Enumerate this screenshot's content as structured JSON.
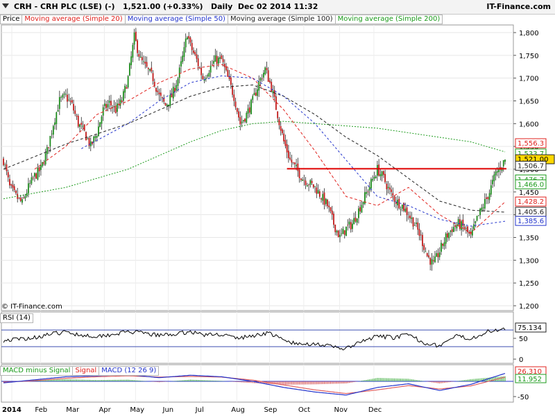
{
  "header": {
    "title": "CRH - CRH PLC (LSE) (-)   1,521.00 (+0.33%)   Daily  Dec 02 2014 11:32",
    "brand": "IT-Finance.com"
  },
  "legend": {
    "price": "Price",
    "ma20": "Moving average (Simple 20)",
    "ma50": "Moving average (Simple 50)",
    "ma100": "Moving average (Simple 100)",
    "ma200": "Moving average (Simple 200)"
  },
  "copyright": "© IT-Finance.com",
  "rsi_label": "RSI (14)",
  "macd_labels": {
    "hist": "MACD minus Signal",
    "signal": "Signal",
    "macd": "MACD (12 26 9)"
  },
  "colors": {
    "up": "#1a8a1a",
    "down": "#c01818",
    "ma20": "#e0201c",
    "ma50": "#2233cc",
    "ma100": "#222222",
    "ma200": "#1a9a1a",
    "resistance": "#e00000"
  },
  "chart_data": [
    {
      "type": "candlestick",
      "title": "CRH - CRH PLC (LSE)",
      "interval": "Daily",
      "x_ticks": [
        "2014",
        "Feb",
        "Mar",
        "Apr",
        "May",
        "Jun",
        "Jul",
        "Aug",
        "Sep",
        "Oct",
        "Nov",
        "Dec"
      ],
      "y_ticks": [
        1200,
        1250,
        1300,
        1350,
        1400,
        1450,
        1500,
        1550,
        1600,
        1650,
        1700,
        1750,
        1800
      ],
      "y_tick_labels": [
        "1,200",
        "1,250",
        "1,300",
        "1,350",
        "1,400",
        "1,450",
        "1,500",
        "1,550",
        "1,600",
        "1,650",
        "1,700",
        "1,750",
        "1,800"
      ],
      "ylim": [
        1180,
        1825
      ],
      "last_price": 1521.0,
      "last_price_label": "1,521.00",
      "resistance_level": 1501,
      "price_path": [
        [
          0,
          1520
        ],
        [
          4,
          1460
        ],
        [
          8,
          1440
        ],
        [
          12,
          1425
        ],
        [
          16,
          1460
        ],
        [
          20,
          1485
        ],
        [
          24,
          1500
        ],
        [
          28,
          1540
        ],
        [
          32,
          1600
        ],
        [
          36,
          1650
        ],
        [
          40,
          1660
        ],
        [
          44,
          1640
        ],
        [
          48,
          1600
        ],
        [
          52,
          1580
        ],
        [
          56,
          1550
        ],
        [
          60,
          1580
        ],
        [
          64,
          1630
        ],
        [
          68,
          1645
        ],
        [
          72,
          1630
        ],
        [
          76,
          1650
        ],
        [
          80,
          1700
        ],
        [
          84,
          1790
        ],
        [
          88,
          1740
        ],
        [
          92,
          1720
        ],
        [
          96,
          1700
        ],
        [
          100,
          1660
        ],
        [
          104,
          1640
        ],
        [
          108,
          1660
        ],
        [
          112,
          1700
        ],
        [
          116,
          1760
        ],
        [
          118,
          1800
        ],
        [
          120,
          1770
        ],
        [
          124,
          1740
        ],
        [
          128,
          1700
        ],
        [
          132,
          1720
        ],
        [
          136,
          1740
        ],
        [
          140,
          1740
        ],
        [
          144,
          1700
        ],
        [
          148,
          1660
        ],
        [
          152,
          1600
        ],
        [
          156,
          1620
        ],
        [
          160,
          1650
        ],
        [
          164,
          1690
        ],
        [
          168,
          1720
        ],
        [
          172,
          1680
        ],
        [
          176,
          1620
        ],
        [
          180,
          1560
        ],
        [
          184,
          1520
        ],
        [
          188,
          1500
        ],
        [
          192,
          1480
        ],
        [
          196,
          1470
        ],
        [
          200,
          1460
        ],
        [
          204,
          1440
        ],
        [
          208,
          1420
        ],
        [
          212,
          1380
        ],
        [
          216,
          1350
        ],
        [
          220,
          1370
        ],
        [
          224,
          1380
        ],
        [
          228,
          1410
        ],
        [
          232,
          1440
        ],
        [
          236,
          1470
        ],
        [
          240,
          1500
        ],
        [
          244,
          1480
        ],
        [
          248,
          1450
        ],
        [
          252,
          1430
        ],
        [
          256,
          1420
        ],
        [
          260,
          1400
        ],
        [
          264,
          1380
        ],
        [
          268,
          1350
        ],
        [
          272,
          1310
        ],
        [
          276,
          1290
        ],
        [
          280,
          1320
        ],
        [
          284,
          1350
        ],
        [
          288,
          1370
        ],
        [
          292,
          1380
        ],
        [
          296,
          1370
        ],
        [
          300,
          1350
        ],
        [
          304,
          1390
        ],
        [
          308,
          1420
        ],
        [
          312,
          1450
        ],
        [
          316,
          1490
        ],
        [
          320,
          1510
        ],
        [
          322,
          1521
        ]
      ],
      "series": [
        {
          "name": "Moving average (Simple 20)",
          "values": [
            [
              20,
              1500
            ],
            [
              40,
              1550
            ],
            [
              60,
              1620
            ],
            [
              80,
              1650
            ],
            [
              100,
              1690
            ],
            [
              120,
              1720
            ],
            [
              140,
              1730
            ],
            [
              160,
              1700
            ],
            [
              180,
              1630
            ],
            [
              200,
              1540
            ],
            [
              220,
              1440
            ],
            [
              240,
              1420
            ],
            [
              260,
              1460
            ],
            [
              280,
              1400
            ],
            [
              300,
              1360
            ],
            [
              322,
              1428.2
            ]
          ]
        },
        {
          "name": "Moving average (Simple 50)",
          "values": [
            [
              50,
              1545
            ],
            [
              80,
              1600
            ],
            [
              100,
              1650
            ],
            [
              120,
              1690
            ],
            [
              140,
              1705
            ],
            [
              160,
              1700
            ],
            [
              180,
              1660
            ],
            [
              200,
              1600
            ],
            [
              220,
              1520
            ],
            [
              240,
              1440
            ],
            [
              260,
              1420
            ],
            [
              280,
              1390
            ],
            [
              300,
              1375
            ],
            [
              322,
              1385.6
            ]
          ]
        },
        {
          "name": "Moving average (Simple 100)",
          "values": [
            [
              0,
              1500
            ],
            [
              40,
              1555
            ],
            [
              80,
              1600
            ],
            [
              100,
              1630
            ],
            [
              120,
              1660
            ],
            [
              140,
              1680
            ],
            [
              160,
              1685
            ],
            [
              180,
              1660
            ],
            [
              200,
              1620
            ],
            [
              220,
              1570
            ],
            [
              240,
              1530
            ],
            [
              260,
              1480
            ],
            [
              280,
              1430
            ],
            [
              300,
              1410
            ],
            [
              322,
              1405.6
            ]
          ]
        },
        {
          "name": "Moving average (Simple 200)",
          "values": [
            [
              0,
              1435
            ],
            [
              40,
              1460
            ],
            [
              80,
              1500
            ],
            [
              100,
              1530
            ],
            [
              120,
              1560
            ],
            [
              140,
              1585
            ],
            [
              160,
              1600
            ],
            [
              180,
              1605
            ],
            [
              200,
              1600
            ],
            [
              220,
              1595
            ],
            [
              240,
              1590
            ],
            [
              260,
              1580
            ],
            [
              280,
              1570
            ],
            [
              300,
              1560
            ],
            [
              322,
              1538
            ]
          ]
        }
      ],
      "right_badges": [
        {
          "value": 1556.3,
          "label": "1,556.3",
          "color": "#e0201c"
        },
        {
          "value": 1533.7,
          "label": "1,533.7",
          "color": "#1a9a1a"
        },
        {
          "value": 1521.0,
          "label": "1,521.00",
          "color": "#222222",
          "highlight": true
        },
        {
          "value": 1506.7,
          "label": "1,506.7",
          "color": "#222222"
        },
        {
          "value": 1476.7,
          "label": "1,476.7",
          "color": "#1a9a1a"
        },
        {
          "value": 1466.0,
          "label": "1,466.0",
          "color": "#1a9a1a"
        },
        {
          "value": 1428.2,
          "label": "1,428.2",
          "color": "#e0201c"
        },
        {
          "value": 1405.6,
          "label": "1,405.6",
          "color": "#222222"
        },
        {
          "value": 1385.6,
          "label": "1,385.6",
          "color": "#2233cc"
        }
      ]
    },
    {
      "type": "line",
      "title": "RSI (14)",
      "y_ticks": [
        0,
        50
      ],
      "ylim": [
        0,
        100
      ],
      "levels": [
        30,
        70
      ],
      "last_value": 75.134,
      "last_value_label": "75.134",
      "values": [
        [
          0,
          45
        ],
        [
          10,
          48
        ],
        [
          20,
          52
        ],
        [
          30,
          60
        ],
        [
          40,
          65
        ],
        [
          50,
          58
        ],
        [
          60,
          55
        ],
        [
          70,
          60
        ],
        [
          80,
          66
        ],
        [
          90,
          62
        ],
        [
          100,
          57
        ],
        [
          110,
          60
        ],
        [
          120,
          66
        ],
        [
          130,
          58
        ],
        [
          140,
          60
        ],
        [
          150,
          50
        ],
        [
          160,
          56
        ],
        [
          170,
          64
        ],
        [
          180,
          45
        ],
        [
          190,
          35
        ],
        [
          200,
          38
        ],
        [
          210,
          30
        ],
        [
          220,
          25
        ],
        [
          230,
          42
        ],
        [
          240,
          55
        ],
        [
          250,
          52
        ],
        [
          260,
          58
        ],
        [
          270,
          40
        ],
        [
          280,
          32
        ],
        [
          290,
          55
        ],
        [
          300,
          50
        ],
        [
          310,
          65
        ],
        [
          322,
          75
        ]
      ]
    },
    {
      "type": "bar+line",
      "title": "MACD (12 26 9)",
      "y_ticks": [
        -50
      ],
      "ylim": [
        -60,
        45
      ],
      "last_values": [
        {
          "label": "26.310",
          "color": "#e0201c"
        },
        {
          "label": "11.952",
          "color": "#1a9a1a"
        }
      ],
      "macd": [
        [
          0,
          -5
        ],
        [
          20,
          5
        ],
        [
          40,
          15
        ],
        [
          60,
          18
        ],
        [
          80,
          22
        ],
        [
          100,
          12
        ],
        [
          120,
          20
        ],
        [
          140,
          15
        ],
        [
          160,
          0
        ],
        [
          180,
          -20
        ],
        [
          200,
          -35
        ],
        [
          220,
          -45
        ],
        [
          240,
          -20
        ],
        [
          260,
          -8
        ],
        [
          280,
          -30
        ],
        [
          300,
          -10
        ],
        [
          322,
          26
        ]
      ],
      "signal": [
        [
          0,
          -3
        ],
        [
          20,
          2
        ],
        [
          40,
          10
        ],
        [
          60,
          15
        ],
        [
          80,
          18
        ],
        [
          100,
          14
        ],
        [
          120,
          16
        ],
        [
          140,
          14
        ],
        [
          160,
          4
        ],
        [
          180,
          -12
        ],
        [
          200,
          -28
        ],
        [
          220,
          -40
        ],
        [
          240,
          -28
        ],
        [
          260,
          -14
        ],
        [
          280,
          -25
        ],
        [
          300,
          -15
        ],
        [
          322,
          14
        ]
      ]
    }
  ]
}
